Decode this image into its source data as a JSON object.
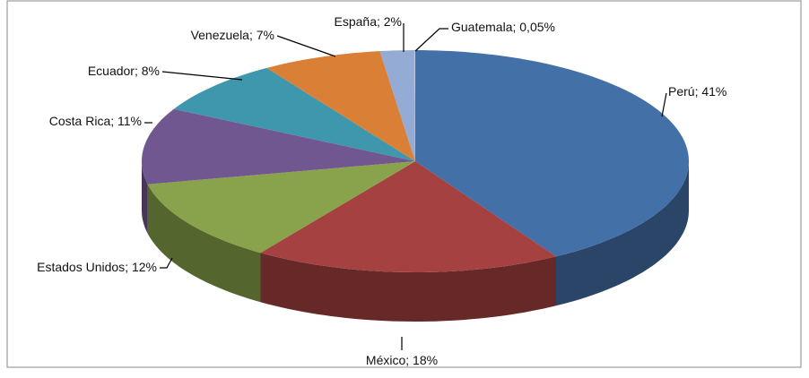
{
  "chart_data": {
    "type": "pie",
    "categories": [
      "Perú",
      "México",
      "Estados Unidos",
      "Costa Rica",
      "Ecuador",
      "Venezuela",
      "España",
      "Guatemala"
    ],
    "values": [
      41,
      18,
      12,
      11,
      8,
      7,
      2,
      0.05
    ],
    "value_labels": [
      "41%",
      "18%",
      "12%",
      "11%",
      "8%",
      "7%",
      "2%",
      "0,05%"
    ],
    "label_separator": "; ",
    "colors": [
      "#4470a8",
      "#a54241",
      "#88a34b",
      "#71578f",
      "#3f97ae",
      "#d98036",
      "#94abd5",
      "#b9c9e5"
    ],
    "start_angle": 0,
    "direction": "clockwise",
    "3d": true
  }
}
